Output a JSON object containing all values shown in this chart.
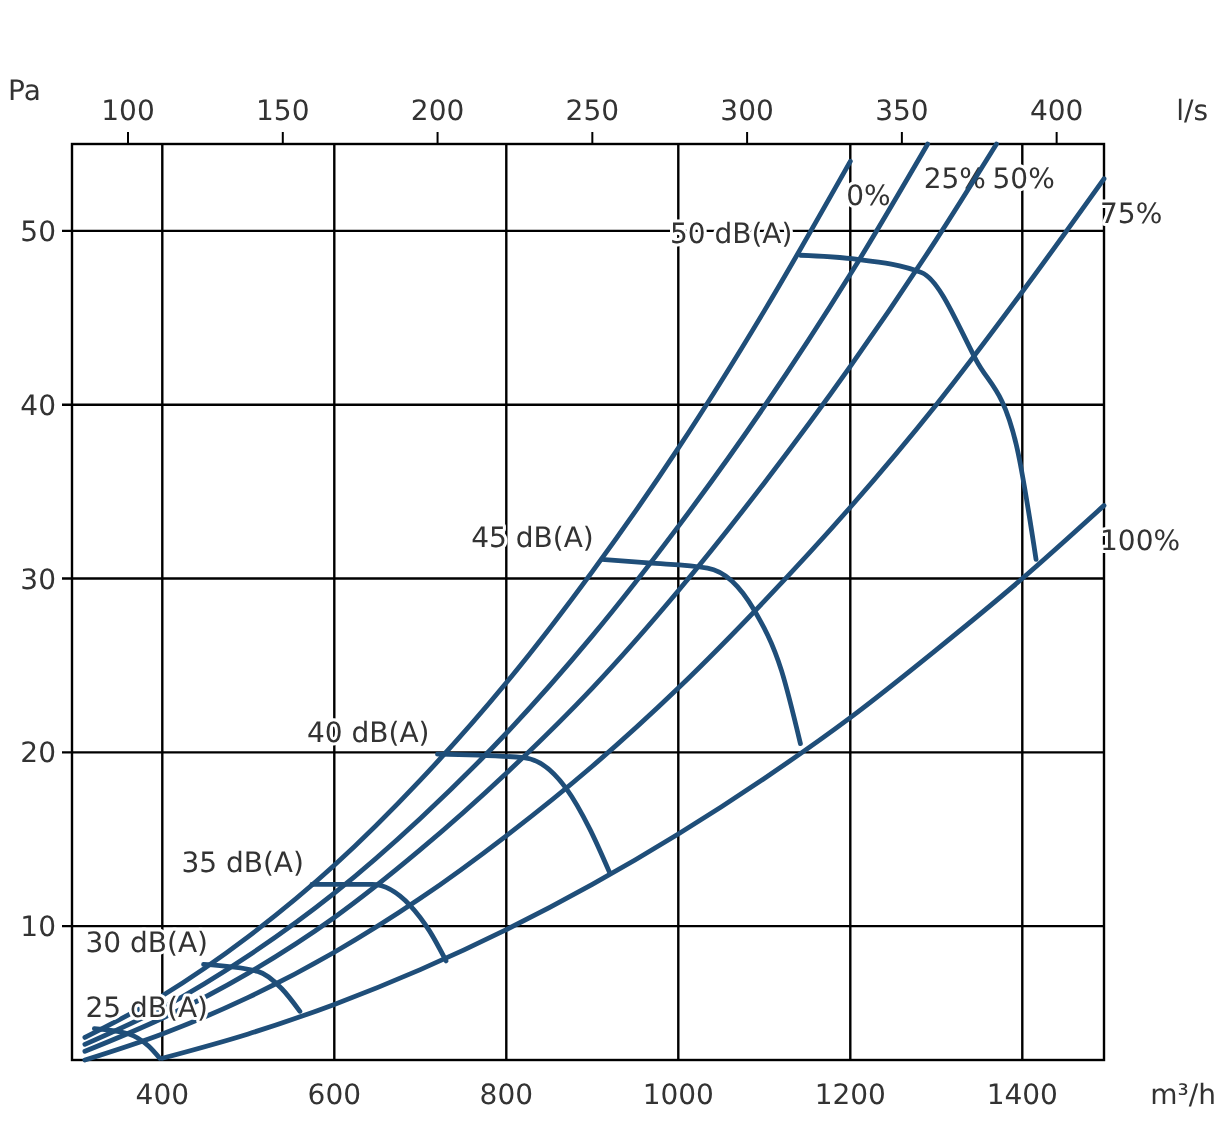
{
  "chart_data": {
    "type": "line",
    "xlabel": "m³/h",
    "ylabel": "Pa",
    "x2label": "l/s",
    "xlim": [
      295,
      1495
    ],
    "xticks": [
      400,
      600,
      800,
      1000,
      1200,
      1400
    ],
    "x2lim": [
      81.9,
      415.3
    ],
    "x2ticks": [
      100,
      150,
      200,
      250,
      300,
      350,
      400
    ],
    "ylim": [
      2.3,
      55
    ],
    "yticks": [
      10,
      20,
      30,
      40,
      50
    ],
    "grid": true,
    "marker": "none",
    "line_style": "solid",
    "series": [
      {
        "name": "0%",
        "color": "#1f4e79",
        "x": [
          310,
          400,
          500,
          600,
          700,
          800,
          900,
          1000,
          1100,
          1200
        ],
        "values": [
          3.6,
          6.0,
          9.4,
          13.5,
          18.4,
          24,
          30.4,
          37.5,
          45.4,
          54
        ]
      },
      {
        "name": "25%",
        "color": "#1f4e79",
        "x": [
          310,
          400,
          500,
          600,
          700,
          800,
          900,
          1000,
          1100,
          1200,
          1290
        ],
        "values": [
          3.2,
          5.3,
          8.3,
          11.9,
          16.2,
          21.1,
          26.7,
          33,
          39.9,
          47.5,
          55
        ]
      },
      {
        "name": "50%",
        "color": "#1f4e79",
        "x": [
          310,
          400,
          500,
          600,
          700,
          800,
          900,
          1000,
          1100,
          1200,
          1300,
          1370
        ],
        "values": [
          2.8,
          4.7,
          7.3,
          10.5,
          14.4,
          18.8,
          23.7,
          29.3,
          35.5,
          42.2,
          49.5,
          55
        ]
      },
      {
        "name": "75%",
        "color": "#1f4e79",
        "x": [
          310,
          400,
          500,
          600,
          700,
          800,
          900,
          1000,
          1100,
          1200,
          1300,
          1400,
          1495
        ],
        "values": [
          2.3,
          3.8,
          5.9,
          8.5,
          11.6,
          15.2,
          19.2,
          23.7,
          28.7,
          34.1,
          40,
          46.5,
          53
        ]
      },
      {
        "name": "100%",
        "color": "#1f4e79",
        "x": [
          400,
          500,
          600,
          700,
          800,
          900,
          1000,
          1100,
          1200,
          1300,
          1400,
          1495
        ],
        "values": [
          2.4,
          3.8,
          5.5,
          7.5,
          9.8,
          12.4,
          15.3,
          18.5,
          22,
          25.9,
          30,
          34.2
        ]
      },
      {
        "name": "50 dB(A)",
        "color": "#1f4e79",
        "x": [
          1142,
          1202,
          1283,
          1346,
          1393,
          1416
        ],
        "values": [
          48.6,
          48.4,
          47.6,
          42.6,
          37.7,
          31.1
        ]
      },
      {
        "name": "45 dB(A)",
        "color": "#1f4e79",
        "x": [
          911,
          965,
          1034,
          1088,
          1120,
          1142
        ],
        "values": [
          31.1,
          30.9,
          30.6,
          28.2,
          24.7,
          20.5
        ]
      },
      {
        "name": "40 dB(A)",
        "color": "#1f4e79",
        "x": [
          720,
          820,
          870,
          897,
          920
        ],
        "values": [
          19.9,
          19.7,
          17.9,
          15.6,
          13.1
        ]
      },
      {
        "name": "35 dB(A)",
        "color": "#1f4e79",
        "x": [
          574,
          644,
          688,
          711,
          730
        ],
        "values": [
          12.4,
          12.4,
          11.2,
          9.7,
          8.0
        ]
      },
      {
        "name": "30 dB(A)",
        "color": "#1f4e79",
        "x": [
          448,
          511,
          539,
          560
        ],
        "values": [
          7.8,
          7.4,
          6.4,
          5.1
        ]
      },
      {
        "name": "25 dB(A)",
        "color": "#1f4e79",
        "x": [
          321,
          361,
          384,
          397
        ],
        "values": [
          4.1,
          3.8,
          3.1,
          2.4
        ]
      }
    ]
  }
}
